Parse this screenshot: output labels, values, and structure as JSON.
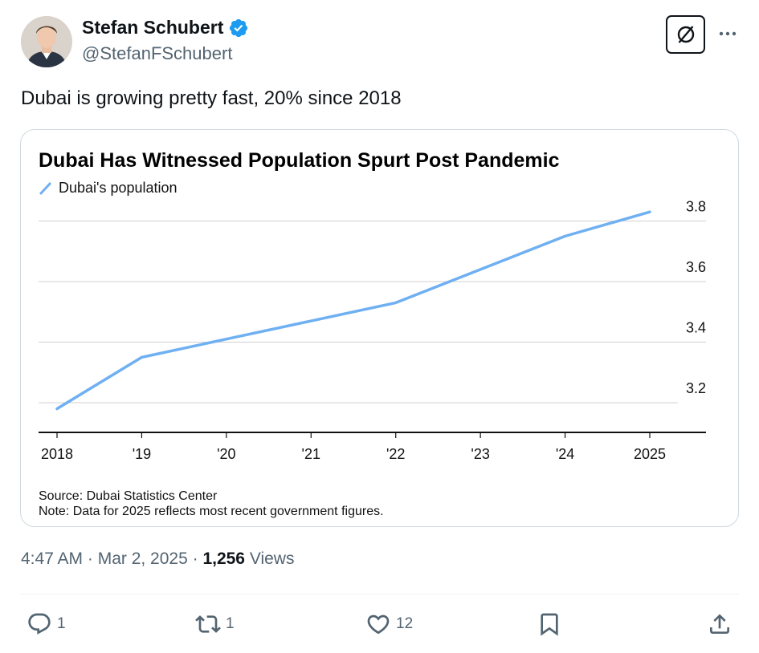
{
  "tweet": {
    "author_name": "Stefan Schubert",
    "handle": "@StefanFSchubert",
    "text": "Dubai is growing pretty fast, 20% since 2018",
    "time": "4:47 AM · Mar 2, 2025 · ",
    "views_count": "1,256",
    "views_label": " Views"
  },
  "actions": {
    "replies": "1",
    "reposts": "1",
    "likes": "12"
  },
  "icons": {
    "verified": "verified-badge-icon",
    "grok": "grok-icon",
    "more": "more-dots-icon",
    "reply": "reply-icon",
    "repost": "repost-icon",
    "like": "heart-icon",
    "bookmark": "bookmark-icon",
    "share": "share-icon"
  },
  "colors": {
    "verified": "#1d9bf0",
    "line": "#6fb0f2",
    "text_secondary": "#536471"
  },
  "chart_data": {
    "type": "line",
    "title": "Dubai Has Witnessed Population Spurt Post Pandemic",
    "legend": "Dubai's population",
    "x": [
      "2018",
      "'19",
      "'20",
      "'21",
      "'22",
      "'23",
      "'24",
      "2025"
    ],
    "series": [
      {
        "name": "Dubai's population",
        "values": [
          3.18,
          3.35,
          3.41,
          3.47,
          3.53,
          3.64,
          3.75,
          3.83
        ]
      }
    ],
    "yticks": [
      "3.2",
      "3.4",
      "3.6",
      "3.8"
    ],
    "ylim": [
      3.1,
      3.85
    ],
    "grid": true,
    "legend_position": "top-left",
    "source": "Source: Dubai Statistics Center",
    "note": "Note: Data for 2025 reflects most recent government figures."
  }
}
